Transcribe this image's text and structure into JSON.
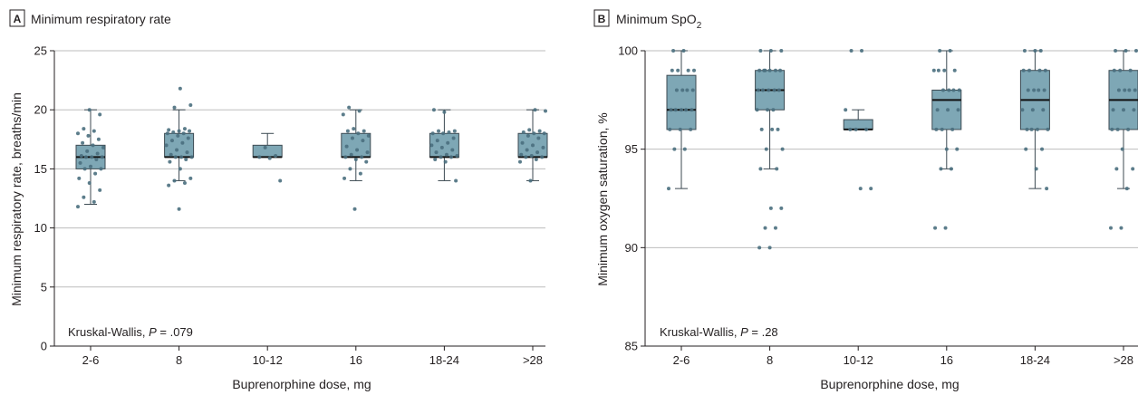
{
  "colors": {
    "box_fill": "#7ea7b5",
    "box_stroke": "#3c4a52",
    "median": "#111111",
    "point": "#4a6f7e",
    "grid": "#bdbdbd",
    "axis": "#231f20"
  },
  "chart_data": [
    {
      "type": "box",
      "panel_letter": "A",
      "title": "Minimum respiratory rate",
      "xlabel": "Buprenorphine dose, mg",
      "ylabel": "Minimum respiratory rate, breaths/min",
      "ylim": [
        0,
        25
      ],
      "yticks": [
        "0",
        "5",
        "10",
        "15",
        "20",
        "25"
      ],
      "categories": [
        "2-6",
        "8",
        "10-12",
        "16",
        "18-24",
        ">28"
      ],
      "note_prefix": "Kruskal-Wallis, ",
      "note_p": "P",
      "note_suffix": " = .079",
      "boxes": [
        {
          "min": 12,
          "q1": 15,
          "median": 16,
          "q3": 17,
          "max": 20
        },
        {
          "min": 14,
          "q1": 16,
          "median": 16,
          "q3": 18,
          "max": 20
        },
        {
          "min": 16,
          "q1": 16,
          "median": 16,
          "q3": 17,
          "max": 18
        },
        {
          "min": 14,
          "q1": 16,
          "median": 16,
          "q3": 18,
          "max": 20
        },
        {
          "min": 14,
          "q1": 16,
          "median": 16,
          "q3": 18,
          "max": 20
        },
        {
          "min": 14,
          "q1": 16,
          "median": 16,
          "q3": 18,
          "max": 20
        }
      ],
      "points": [
        [
          11.8,
          12.2,
          12.6,
          13.2,
          13.8,
          14.2,
          14.6,
          15.0,
          15.0,
          15.2,
          15.5,
          15.8,
          16.0,
          16.0,
          16.0,
          16.1,
          16.3,
          16.5,
          16.8,
          17.0,
          17.2,
          17.5,
          17.8,
          18.0,
          18.2,
          18.4,
          19.6,
          20.0
        ],
        [
          11.6,
          13.6,
          13.8,
          14.0,
          14.2,
          15.0,
          15.6,
          15.8,
          16.0,
          16.0,
          16.0,
          16.2,
          16.4,
          16.6,
          17.0,
          17.2,
          17.4,
          17.6,
          17.8,
          18.0,
          18.0,
          18.1,
          18.2,
          18.2,
          18.3,
          18.4,
          20.2,
          20.4,
          21.8
        ],
        [
          14.0,
          15.9,
          16.0,
          16.1,
          16.8
        ],
        [
          11.6,
          14.2,
          14.6,
          15.0,
          15.6,
          15.8,
          16.0,
          16.0,
          16.2,
          16.4,
          16.6,
          16.9,
          17.4,
          17.6,
          17.8,
          18.0,
          18.2,
          18.2,
          18.4,
          19.6,
          19.9,
          20.2
        ],
        [
          14.0,
          15.6,
          15.8,
          16.0,
          16.0,
          16.1,
          16.2,
          16.4,
          16.6,
          16.8,
          17.0,
          17.2,
          17.4,
          17.6,
          18.0,
          18.0,
          18.1,
          18.2,
          18.2,
          19.8,
          20.0
        ],
        [
          14.0,
          15.6,
          15.8,
          16.0,
          16.0,
          16.1,
          16.2,
          16.4,
          16.6,
          16.8,
          17.0,
          17.2,
          17.6,
          17.8,
          18.0,
          18.0,
          18.1,
          18.2,
          18.3,
          19.9,
          20.0
        ]
      ]
    },
    {
      "type": "box",
      "panel_letter": "B",
      "title": "Minimum SpO",
      "title_sub": "2",
      "xlabel": "Buprenorphine dose, mg",
      "ylabel": "Minimum oxygen saturation, %",
      "ylim": [
        85,
        100
      ],
      "yticks": [
        "85",
        "90",
        "95",
        "100"
      ],
      "categories": [
        "2-6",
        "8",
        "10-12",
        "16",
        "18-24",
        ">28"
      ],
      "note_prefix": "Kruskal-Wallis, ",
      "note_p": "P",
      "note_suffix": " = .28",
      "boxes": [
        {
          "min": 93,
          "q1": 96,
          "median": 97,
          "q3": 98.75,
          "max": 100
        },
        {
          "min": 94,
          "q1": 97,
          "median": 98,
          "q3": 99,
          "max": 100
        },
        {
          "min": 96,
          "q1": 96,
          "median": 96,
          "q3": 96.5,
          "max": 97
        },
        {
          "min": 94,
          "q1": 96,
          "median": 97.5,
          "q3": 98,
          "max": 100
        },
        {
          "min": 93,
          "q1": 96,
          "median": 97.5,
          "q3": 99,
          "max": 100
        },
        {
          "min": 93,
          "q1": 96,
          "median": 97.5,
          "q3": 99,
          "max": 100
        }
      ],
      "points": [
        [
          93,
          95,
          95,
          96,
          96,
          96,
          97,
          97,
          97,
          97,
          97,
          98,
          98,
          98,
          98,
          99,
          99,
          99,
          99,
          100,
          100
        ],
        [
          90,
          90,
          91,
          91,
          92,
          92,
          94,
          94,
          95,
          95,
          96,
          96,
          96,
          97,
          97,
          97,
          98,
          98,
          98,
          98,
          98,
          99,
          99,
          99,
          99,
          99,
          99,
          100,
          100,
          100
        ],
        [
          93,
          93,
          96,
          96,
          96,
          97,
          100,
          100
        ],
        [
          91,
          91,
          94,
          94,
          95,
          95,
          96,
          96,
          96,
          97,
          97,
          97,
          98,
          98,
          98,
          98,
          99,
          99,
          99,
          99,
          100,
          100
        ],
        [
          93,
          94,
          95,
          95,
          96,
          96,
          96,
          96,
          97,
          97,
          97,
          98,
          98,
          98,
          98,
          99,
          99,
          99,
          99,
          100,
          100,
          100
        ],
        [
          91,
          91,
          93,
          94,
          94,
          95,
          96,
          96,
          96,
          97,
          97,
          97,
          98,
          98,
          98,
          98,
          99,
          99,
          99,
          100,
          100,
          100
        ]
      ]
    }
  ]
}
